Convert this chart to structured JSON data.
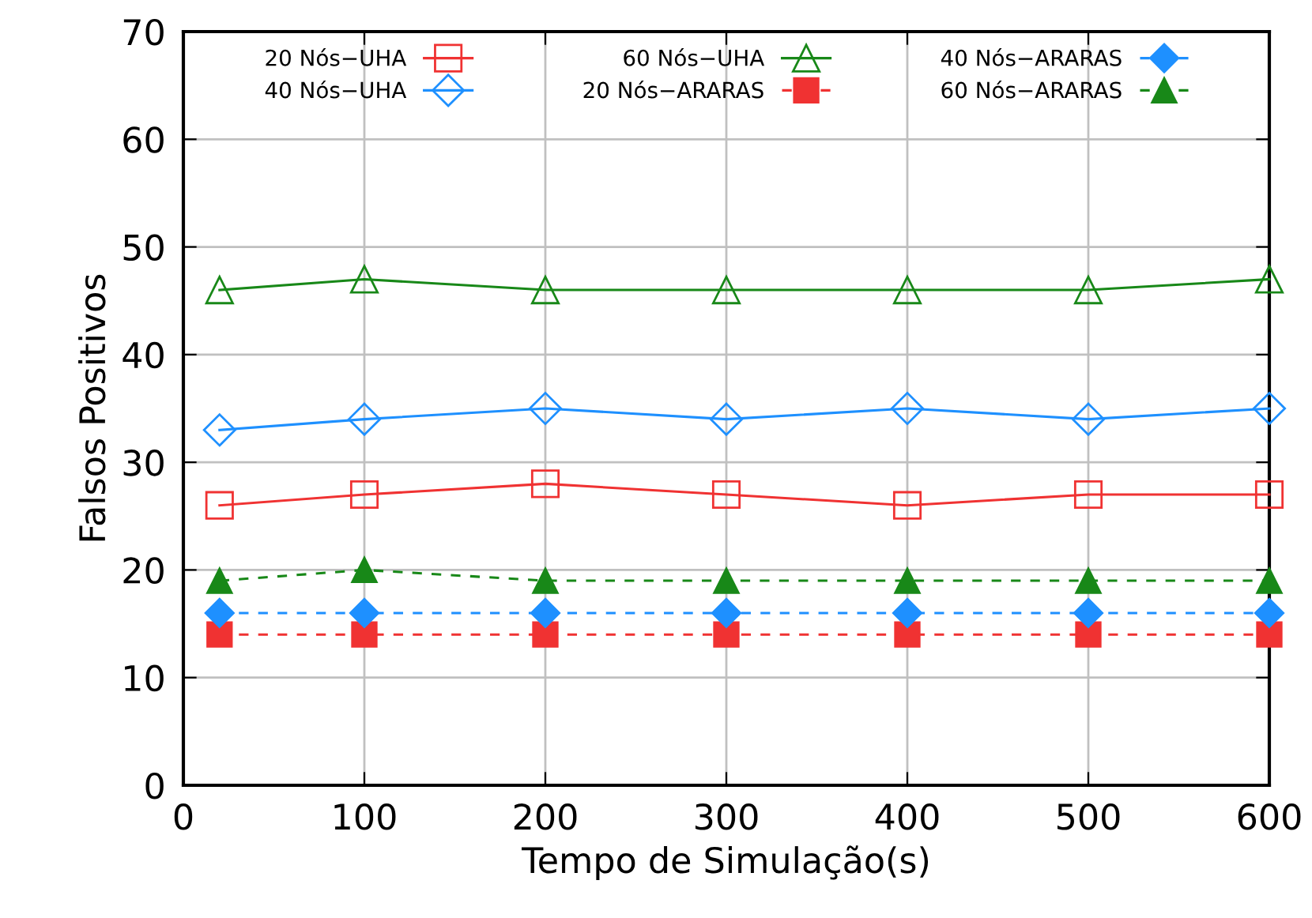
{
  "chart_data": {
    "type": "line",
    "xlabel": "Tempo de Simulação(s)",
    "ylabel": "Falsos Positivos",
    "x": [
      20,
      100,
      200,
      300,
      400,
      500,
      600
    ],
    "series": [
      {
        "name": "20 Nós−UHA",
        "color": "#f03232",
        "values": [
          26,
          27,
          28,
          27,
          26,
          27,
          27
        ],
        "marker": "square",
        "line_style": "solid"
      },
      {
        "name": "40 Nós−UHA",
        "color": "#1e90ff",
        "values": [
          33,
          34,
          35,
          34,
          35,
          34,
          35
        ],
        "marker": "diamond",
        "line_style": "solid"
      },
      {
        "name": "60 Nós−UHA",
        "color": "#188818",
        "values": [
          46,
          47,
          46,
          46,
          46,
          46,
          47
        ],
        "marker": "triangle",
        "line_style": "solid"
      },
      {
        "name": "20 Nós−ARARAS",
        "color": "#f03232",
        "values": [
          14,
          14,
          14,
          14,
          14,
          14,
          14
        ],
        "marker": "square",
        "line_style": "dashed"
      },
      {
        "name": "40 Nós−ARARAS",
        "color": "#1e90ff",
        "values": [
          16,
          16,
          16,
          16,
          16,
          16,
          16
        ],
        "marker": "diamond",
        "line_style": "dashed"
      },
      {
        "name": "60 Nós−ARARAS",
        "color": "#188818",
        "values": [
          19,
          20,
          19,
          19,
          19,
          19,
          19
        ],
        "marker": "triangle",
        "line_style": "dashed"
      }
    ],
    "xlim": [
      0,
      600
    ],
    "xticks": [
      0,
      100,
      200,
      300,
      400,
      500,
      600
    ],
    "ylim": [
      0,
      70
    ],
    "yticks": [
      0,
      10,
      20,
      30,
      40,
      50,
      60,
      70
    ],
    "grid": true,
    "legend": "top"
  }
}
